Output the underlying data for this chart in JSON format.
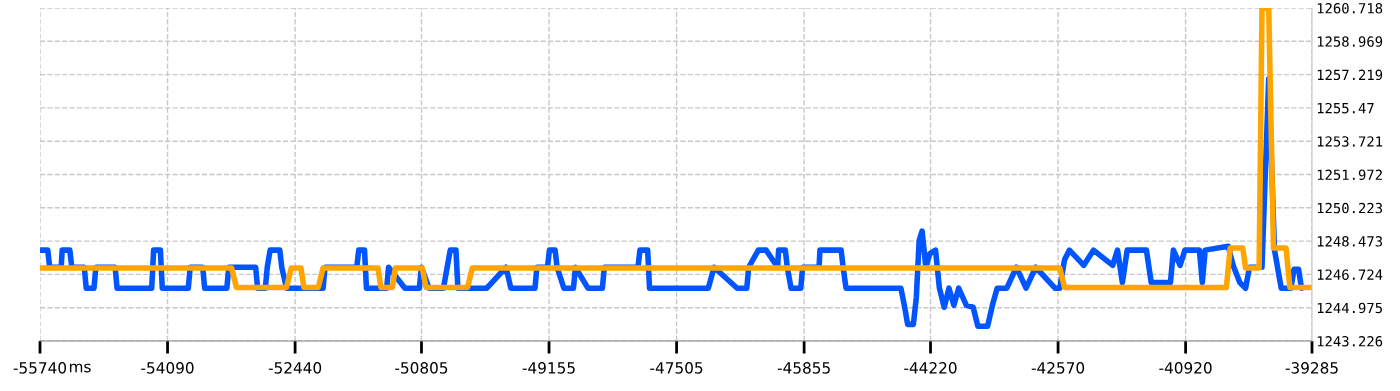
{
  "chart_data": {
    "type": "line",
    "xlabel": "ms",
    "xlim": [
      -55740,
      -39285
    ],
    "xticks": [
      -55740,
      -54090,
      -52440,
      -50805,
      -49155,
      -47505,
      -45855,
      -44220,
      -42570,
      -40920,
      -39285
    ],
    "ylim": [
      1243.226,
      1260.718
    ],
    "yticks": [
      1243.226,
      1244.975,
      1246.724,
      1248.473,
      1250.223,
      1251.972,
      1253.721,
      1255.47,
      1257.219,
      1258.969,
      1260.718
    ],
    "grid": true,
    "legend": false,
    "marker": "none",
    "line_style": "solid",
    "series": [
      {
        "color": "#0055ff",
        "x": [
          -55740,
          -55640,
          -55615,
          -55466,
          -55453,
          -55354,
          -55329,
          -55167,
          -55142,
          -55042,
          -55017,
          -54768,
          -54743,
          -54295,
          -54270,
          -54183,
          -54158,
          -53822,
          -53797,
          -53635,
          -53610,
          -53323,
          -53298,
          -52950,
          -52925,
          -52825,
          -52800,
          -52763,
          -52638,
          -52613,
          -52551,
          -52078,
          -52053,
          -51642,
          -51617,
          -51542,
          -51517,
          -51255,
          -51231,
          -51019,
          -50832,
          -50807,
          -50707,
          -50521,
          -50433,
          -50359,
          -50334,
          -49960,
          -49711,
          -49649,
          -49337,
          -49312,
          -49175,
          -49150,
          -49076,
          -49051,
          -48963,
          -48839,
          -48814,
          -48652,
          -48465,
          -48440,
          -48004,
          -47979,
          -47879,
          -47855,
          -47095,
          -47020,
          -46721,
          -46597,
          -46572,
          -46447,
          -46347,
          -46198,
          -46185,
          -46098,
          -46073,
          -46024,
          -45899,
          -45874,
          -45662,
          -45650,
          -45376,
          -45351,
          -45313,
          -44603,
          -44554,
          -44516,
          -44442,
          -44404,
          -44367,
          -44329,
          -44280,
          -44230,
          -44155,
          -44105,
          -44043,
          -43981,
          -43918,
          -43856,
          -43756,
          -43669,
          -43607,
          -43482,
          -43420,
          -43358,
          -43233,
          -43109,
          -42984,
          -42859,
          -42610,
          -42548,
          -42486,
          -42423,
          -42237,
          -42112,
          -41863,
          -41801,
          -41738,
          -41676,
          -41427,
          -41365,
          -41116,
          -41078,
          -40991,
          -40929,
          -40742,
          -40704,
          -40667,
          -40368,
          -40306,
          -40219,
          -40144,
          -40094,
          -39932,
          -39845,
          -39770,
          -39683,
          -39558,
          -39517,
          -39459,
          -39421
        ],
        "values": [
          1248.0,
          1248.0,
          1247.1,
          1247.1,
          1248.0,
          1248.0,
          1247.1,
          1247.1,
          1246.0,
          1246.0,
          1247.1,
          1247.1,
          1246.0,
          1246.0,
          1248.0,
          1248.0,
          1246.0,
          1246.0,
          1247.1,
          1247.1,
          1246.0,
          1246.0,
          1247.1,
          1247.1,
          1246.0,
          1246.0,
          1247.1,
          1248.0,
          1248.0,
          1247.1,
          1246.0,
          1246.0,
          1247.1,
          1247.1,
          1248.0,
          1248.0,
          1246.0,
          1246.0,
          1247.1,
          1246.0,
          1246.0,
          1247.1,
          1246.0,
          1246.0,
          1248.0,
          1248.0,
          1246.0,
          1246.0,
          1247.1,
          1246.0,
          1246.0,
          1247.1,
          1247.1,
          1248.0,
          1248.0,
          1247.1,
          1246.0,
          1246.0,
          1247.1,
          1246.0,
          1246.0,
          1247.1,
          1247.1,
          1248.0,
          1248.0,
          1246.0,
          1246.0,
          1247.1,
          1246.0,
          1246.0,
          1247.1,
          1248.0,
          1248.0,
          1247.1,
          1248.0,
          1248.0,
          1247.1,
          1246.0,
          1246.0,
          1247.1,
          1247.1,
          1248.0,
          1248.0,
          1247.1,
          1246.0,
          1246.0,
          1245.0,
          1244.1,
          1244.1,
          1245.5,
          1248.5,
          1249.0,
          1247.1,
          1247.8,
          1248.0,
          1246.0,
          1245.0,
          1246.0,
          1245.1,
          1246.0,
          1245.1,
          1245.0,
          1244.0,
          1244.0,
          1245.1,
          1246.0,
          1246.0,
          1247.1,
          1246.0,
          1247.1,
          1246.0,
          1246.0,
          1247.5,
          1248.0,
          1247.2,
          1248.0,
          1247.2,
          1248.0,
          1246.3,
          1248.0,
          1248.0,
          1246.3,
          1246.3,
          1248.0,
          1247.2,
          1248.0,
          1248.0,
          1246.3,
          1248.0,
          1248.2,
          1247.2,
          1246.3,
          1246.0,
          1247.1,
          1247.1,
          1257.0,
          1248.0,
          1246.0,
          1246.0,
          1247.0,
          1247.0,
          1246.0
        ]
      },
      {
        "color": "#ffa500",
        "x": [
          -55740,
          -53261,
          -53199,
          -52551,
          -52489,
          -52364,
          -52327,
          -52140,
          -52078,
          -51368,
          -51330,
          -51181,
          -51143,
          -50795,
          -50745,
          -50209,
          -50147,
          -42548,
          -42486,
          -40393,
          -40343,
          -40181,
          -40144,
          -39969,
          -39932,
          -39845,
          -39783,
          -39621,
          -39571,
          -39285
        ],
        "values": [
          1247.06,
          1247.06,
          1246.04,
          1246.04,
          1247.06,
          1247.06,
          1246.04,
          1246.04,
          1247.06,
          1247.06,
          1246.04,
          1246.04,
          1247.06,
          1247.06,
          1246.04,
          1246.04,
          1247.06,
          1247.06,
          1246.04,
          1246.04,
          1248.11,
          1248.11,
          1247.06,
          1247.06,
          1260.7,
          1260.7,
          1248.11,
          1248.11,
          1246.04,
          1246.04
        ]
      }
    ]
  }
}
